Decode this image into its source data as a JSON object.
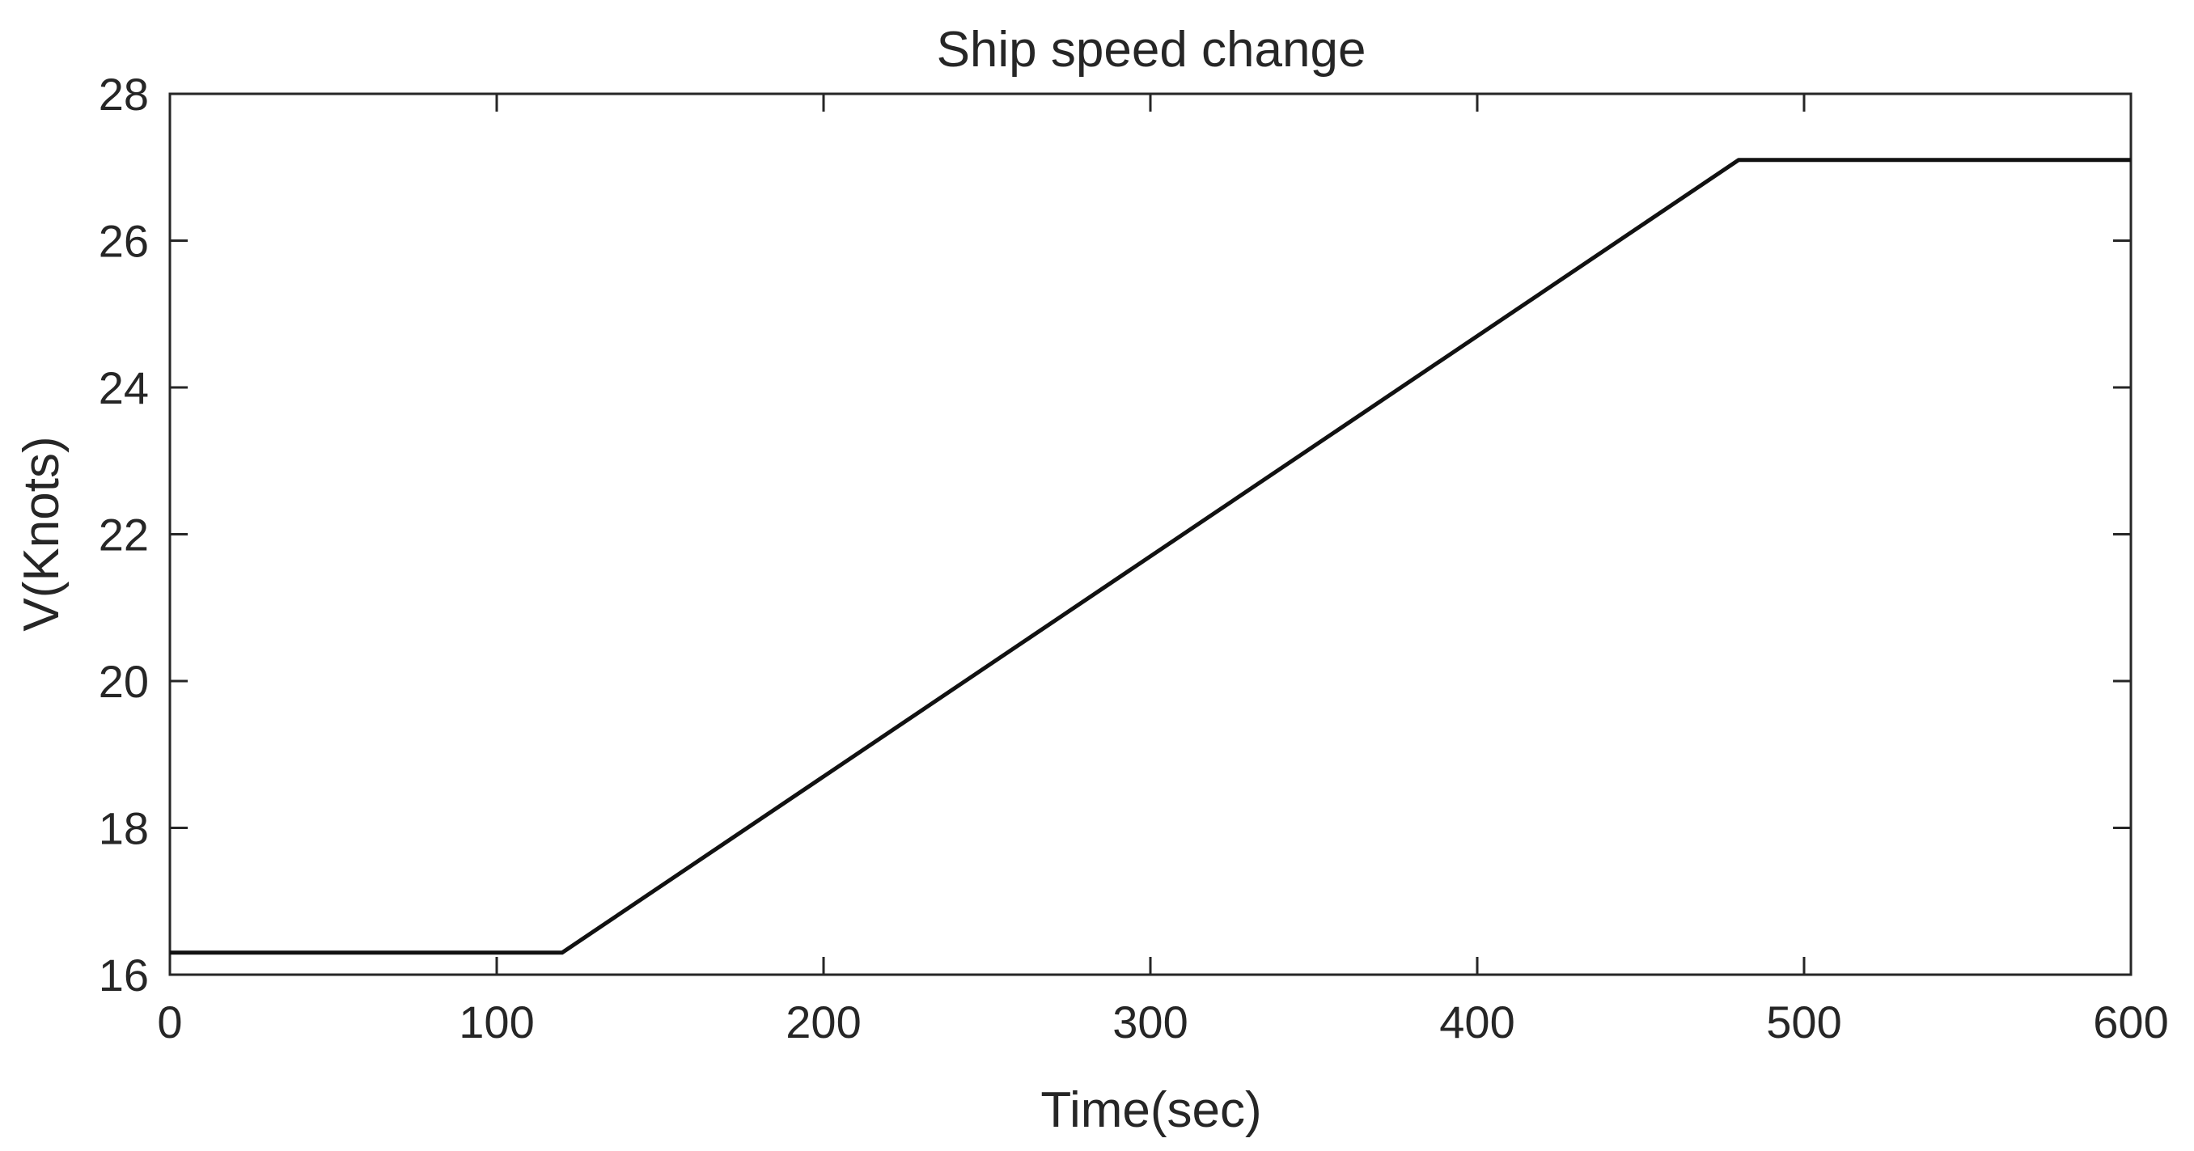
{
  "chart_data": {
    "type": "line",
    "title": "Ship speed change",
    "xlabel": "Time(sec)",
    "ylabel": "V(Knots)",
    "xlim": [
      0,
      600
    ],
    "ylim": [
      16,
      28
    ],
    "xticks": [
      0,
      100,
      200,
      300,
      400,
      500,
      600
    ],
    "yticks": [
      16,
      18,
      20,
      22,
      24,
      26,
      28
    ],
    "xtick_labels": [
      "0",
      "100",
      "200",
      "300",
      "400",
      "500",
      "600"
    ],
    "ytick_labels": [
      "16",
      "18",
      "20",
      "22",
      "24",
      "26",
      "28"
    ],
    "grid": false,
    "legend": "none",
    "series": [
      {
        "color": "#111111",
        "x": [
          0,
          120,
          480,
          600
        ],
        "y": [
          16.3,
          16.3,
          27.1,
          27.1
        ]
      }
    ]
  }
}
